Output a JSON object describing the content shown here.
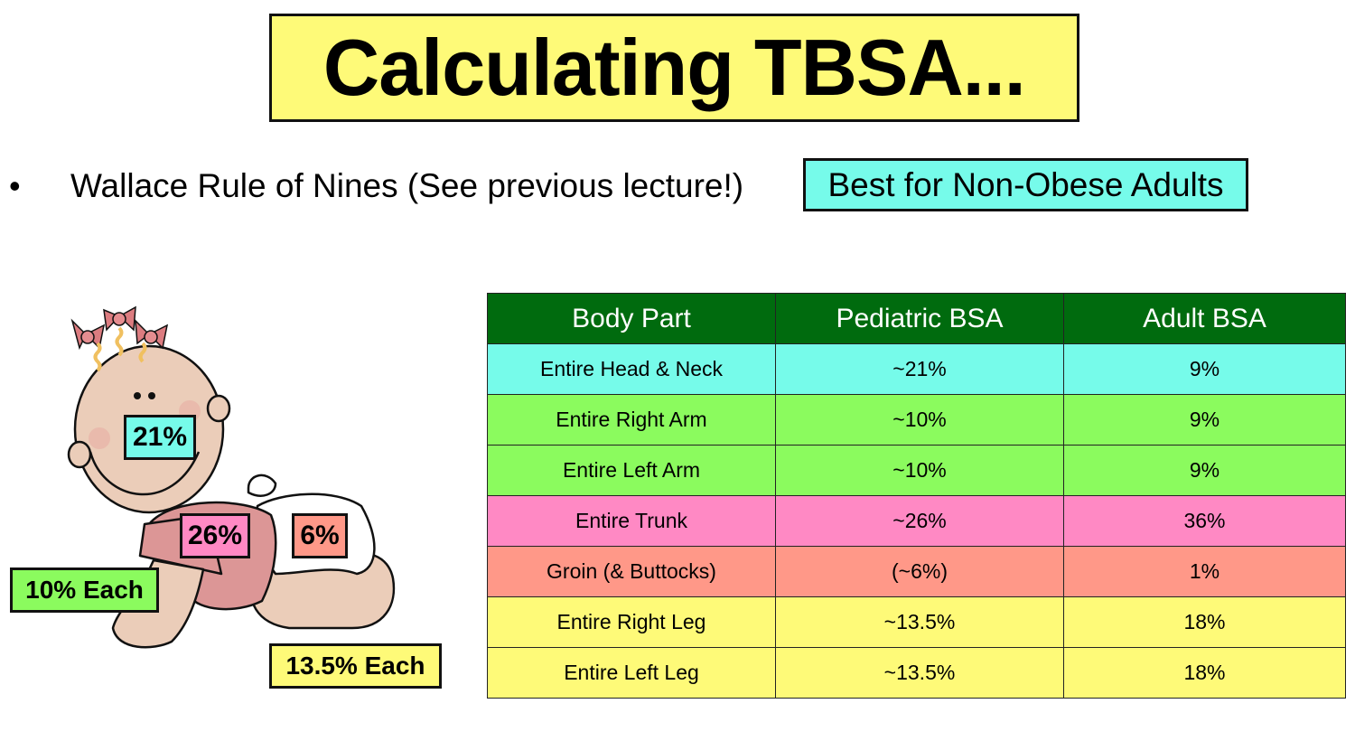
{
  "title": "Calculating TBSA...",
  "bullet": {
    "marker": "•",
    "text": "Wallace Rule of Nines (See previous lecture!)",
    "tag": "Best for Non-Obese Adults"
  },
  "colors": {
    "title_bg": "#fefa78",
    "tag_bg": "#76fbea",
    "header_bg": "#006b0e",
    "head_neck": "#76fbea",
    "arm": "#8bfb5e",
    "trunk": "#ff89c4",
    "groin": "#ff9888",
    "leg": "#fefa78"
  },
  "table": {
    "headers": [
      "Body Part",
      "Pediatric BSA",
      "Adult BSA"
    ],
    "rows": [
      {
        "part": "Entire Head & Neck",
        "pediatric": "~21%",
        "adult": "9%",
        "color": "#76fbea"
      },
      {
        "part": "Entire Right Arm",
        "pediatric": "~10%",
        "adult": "9%",
        "color": "#8bfb5e"
      },
      {
        "part": "Entire Left Arm",
        "pediatric": "~10%",
        "adult": "9%",
        "color": "#8bfb5e"
      },
      {
        "part": "Entire Trunk",
        "pediatric": "~26%",
        "adult": "36%",
        "color": "#ff89c4"
      },
      {
        "part": "Groin (& Buttocks)",
        "pediatric": "(~6%)",
        "adult": "1%",
        "color": "#ff9888"
      },
      {
        "part": "Entire Right Leg",
        "pediatric": "~13.5%",
        "adult": "18%",
        "color": "#fefa78"
      },
      {
        "part": "Entire Left Leg",
        "pediatric": "~13.5%",
        "adult": "18%",
        "color": "#fefa78"
      }
    ]
  },
  "illustration": {
    "description": "baby-crawling-illustration",
    "labels": {
      "head": "21%",
      "trunk": "26%",
      "groin": "6%",
      "arms": "10% Each",
      "legs": "13.5% Each"
    }
  }
}
